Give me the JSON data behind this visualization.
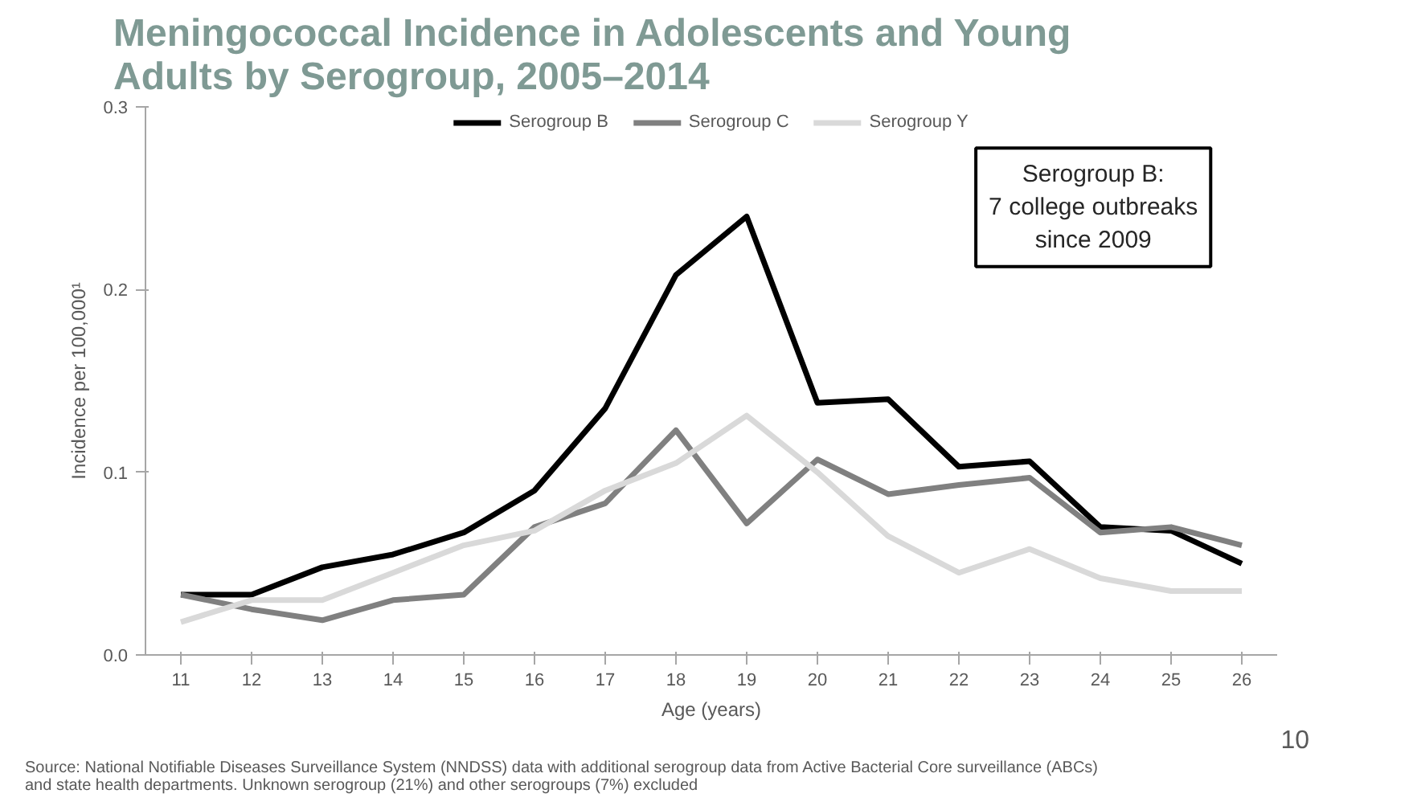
{
  "chart_data": {
    "type": "line",
    "title": "Meningococcal Incidence in Adolescents and Young\nAdults by Serogroup, 2005–2014",
    "xlabel": "Age (years)",
    "ylabel": "Incidence per 100,000¹",
    "categories": [
      "11",
      "12",
      "13",
      "14",
      "15",
      "16",
      "17",
      "18",
      "19",
      "20",
      "21",
      "22",
      "23",
      "24",
      "25",
      "26"
    ],
    "series": [
      {
        "name": "Serogroup B",
        "color": "#000000",
        "values": [
          0.033,
          0.033,
          0.048,
          0.055,
          0.067,
          0.09,
          0.135,
          0.208,
          0.24,
          0.138,
          0.14,
          0.103,
          0.106,
          0.07,
          0.068,
          0.05
        ]
      },
      {
        "name": "Serogroup C",
        "color": "#808080",
        "values": [
          0.033,
          0.025,
          0.019,
          0.03,
          0.033,
          0.07,
          0.083,
          0.123,
          0.072,
          0.107,
          0.088,
          0.093,
          0.097,
          0.067,
          0.07,
          0.06
        ]
      },
      {
        "name": "Serogroup Y",
        "color": "#d9d9d9",
        "values": [
          0.018,
          0.03,
          0.03,
          0.045,
          0.06,
          0.068,
          0.09,
          0.105,
          0.131,
          0.1,
          0.065,
          0.045,
          0.058,
          0.042,
          0.035,
          0.035
        ]
      }
    ],
    "ylim": [
      0,
      0.3
    ],
    "yticks": [
      {
        "value": 0,
        "label": "0.0"
      },
      0.1,
      0.2,
      0.3
    ],
    "grid": false,
    "legend": "top",
    "marker": "none",
    "line_style": "solid",
    "annotations": [
      "Serogroup B:\n7 college outbreaks\nsince 2009",
      "Source: National Notifiable Diseases Surveillance System (NNDSS) data with additional serogroup data from Active Bacterial Core surveillance (ABCs) and state health departments. Unknown serogroup (21%) and other serogroups (7%) excluded",
      "10"
    ]
  }
}
